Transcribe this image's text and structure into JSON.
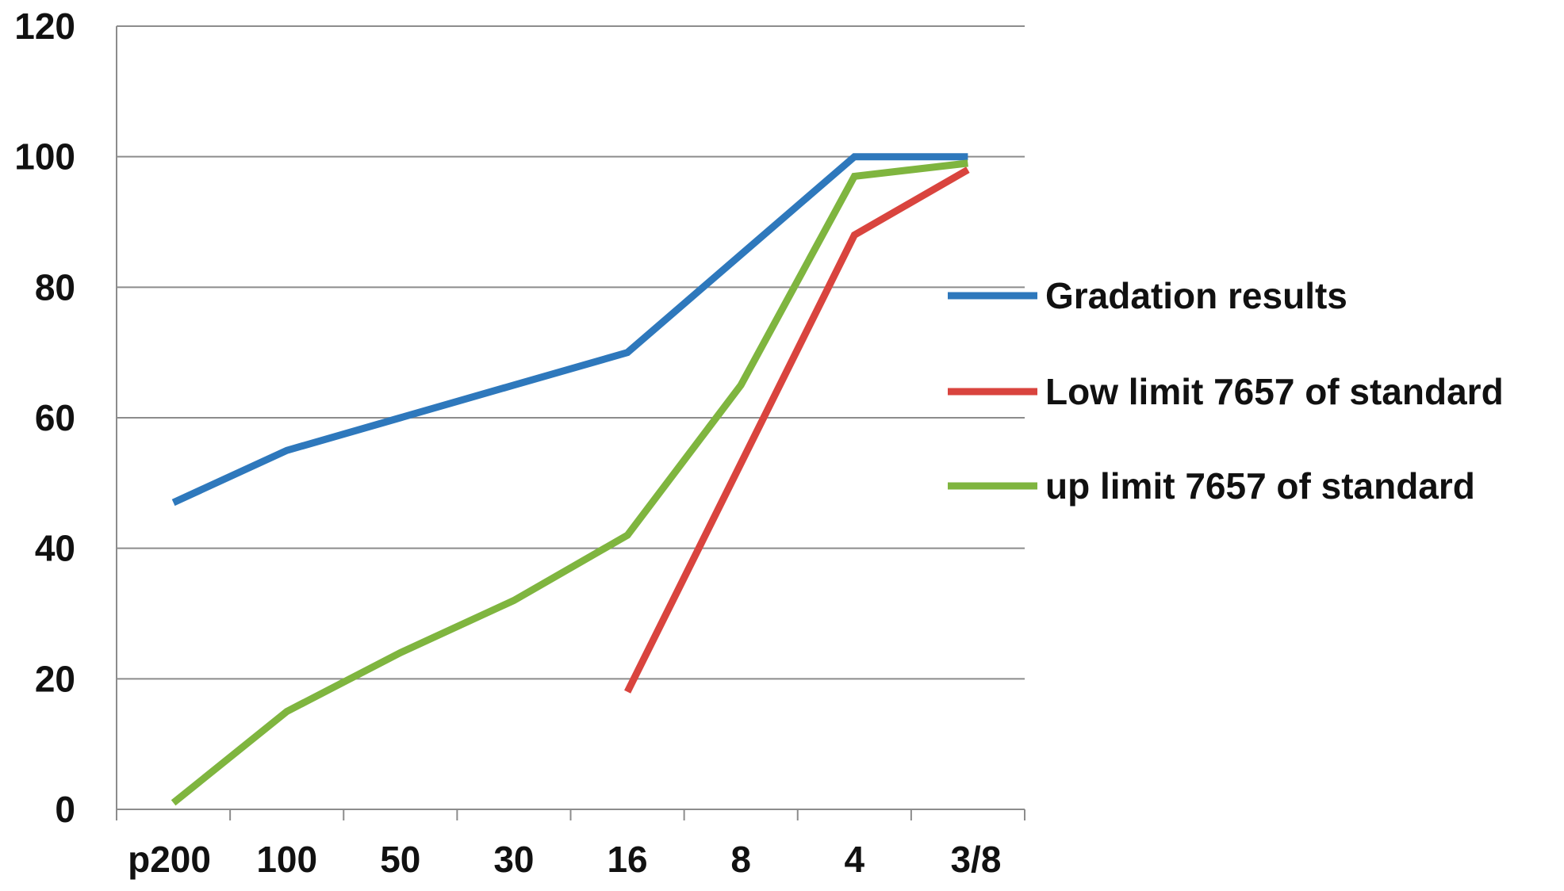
{
  "chart_data": {
    "type": "line",
    "categories": [
      "p200",
      "100",
      "50",
      "30",
      "16",
      "8",
      "4",
      "3/8"
    ],
    "ylim": [
      0,
      120
    ],
    "yticks": [
      0,
      20,
      40,
      60,
      80,
      100,
      120
    ],
    "grid": true,
    "legend_position": "right",
    "series": [
      {
        "name": "Gradation results",
        "color": "#2e78bc",
        "values": [
          47,
          55,
          60,
          65,
          70,
          85,
          100,
          100
        ]
      },
      {
        "name": "Low limit 7657 of standard",
        "color": "#d9443e",
        "values": [
          null,
          null,
          null,
          null,
          18,
          53,
          88,
          98
        ]
      },
      {
        "name": "up limit 7657 of standard",
        "color": "#7fb53f",
        "values": [
          1,
          15,
          24,
          32,
          42,
          65,
          97,
          99
        ]
      }
    ]
  }
}
